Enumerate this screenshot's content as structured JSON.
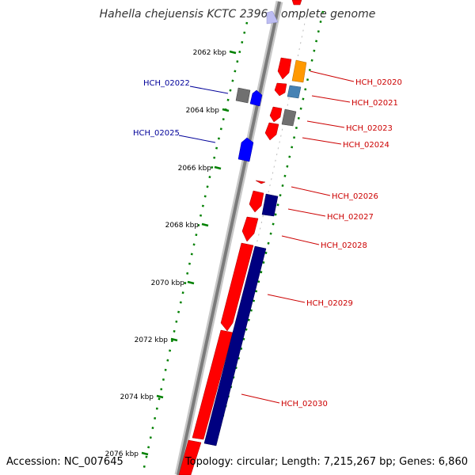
{
  "title": "Hahella chejuensis KCTC 2396, complete genome",
  "accession": "Accession: NC_007645",
  "summary": "Topology: circular; Length: 7,215,267 bp; Genes: 6,860",
  "colors": {
    "red": "#ff0000",
    "navy": "#000080",
    "blue": "#0000ff",
    "gray": "#707070",
    "orange": "#ff9900",
    "steelblue": "#4682b4",
    "tick": "#008000",
    "right_label": "#cc0000",
    "left_label": "#000099"
  },
  "ticks": [
    "2062 kbp",
    "2064 kbp",
    "2066 kbp",
    "2068 kbp",
    "2070 kbp",
    "2072 kbp",
    "2074 kbp",
    "2076 kbp"
  ],
  "gene_labels": {
    "right": [
      "HCH_02020",
      "HCH_02021",
      "HCH_02023",
      "HCH_02024",
      "HCH_02026",
      "HCH_02027",
      "HCH_02028",
      "HCH_02029",
      "HCH_02030"
    ],
    "left": [
      "HCH_02022",
      "HCH_02025"
    ]
  }
}
